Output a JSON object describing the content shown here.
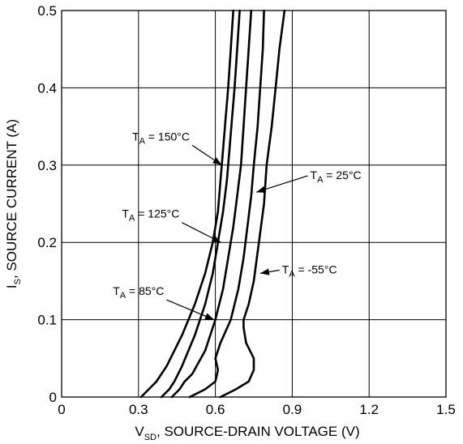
{
  "chart_data": {
    "type": "line",
    "xlabel": {
      "main": "V",
      "sub": "SD",
      "rest": ", SOURCE-DRAIN VOLTAGE (V)"
    },
    "ylabel": {
      "main": "I",
      "sub": "S",
      "rest": ", SOURCE CURRENT (A)"
    },
    "xlim": [
      0,
      1.5
    ],
    "ylim": [
      0,
      0.5
    ],
    "xticks": [
      0,
      0.3,
      0.6,
      0.9,
      1.2,
      1.5
    ],
    "xtick_labels": [
      "0",
      "0.3",
      "0.6",
      "0.9",
      "1.2",
      "1.5"
    ],
    "yticks": [
      0,
      0.1,
      0.2,
      0.3,
      0.4,
      0.5
    ],
    "ytick_labels": [
      "0",
      "0.1",
      "0.2",
      "0.3",
      "0.4",
      "0.5"
    ],
    "grid": true,
    "series": [
      {
        "name": "150",
        "label": {
          "pre": "T",
          "sub": "A",
          "post": " = 150°C"
        },
        "points": [
          [
            0.31,
            0
          ],
          [
            0.34,
            0.01
          ],
          [
            0.37,
            0.02
          ],
          [
            0.41,
            0.04
          ],
          [
            0.47,
            0.08
          ],
          [
            0.52,
            0.12
          ],
          [
            0.56,
            0.16
          ],
          [
            0.59,
            0.2
          ],
          [
            0.61,
            0.24
          ],
          [
            0.62,
            0.28
          ],
          [
            0.63,
            0.32
          ],
          [
            0.64,
            0.36
          ],
          [
            0.65,
            0.4
          ],
          [
            0.66,
            0.45
          ],
          [
            0.67,
            0.5
          ]
        ]
      },
      {
        "name": "125",
        "label": {
          "pre": "T",
          "sub": "A",
          "post": " = 125°C"
        },
        "points": [
          [
            0.39,
            0
          ],
          [
            0.42,
            0.01
          ],
          [
            0.44,
            0.02
          ],
          [
            0.47,
            0.04
          ],
          [
            0.52,
            0.08
          ],
          [
            0.56,
            0.12
          ],
          [
            0.59,
            0.16
          ],
          [
            0.61,
            0.2
          ],
          [
            0.63,
            0.24
          ],
          [
            0.645,
            0.28
          ],
          [
            0.655,
            0.32
          ],
          [
            0.665,
            0.36
          ],
          [
            0.675,
            0.4
          ],
          [
            0.685,
            0.45
          ],
          [
            0.695,
            0.5
          ]
        ]
      },
      {
        "name": "85",
        "label": {
          "pre": "T",
          "sub": "A",
          "post": " = 85°C"
        },
        "points": [
          [
            0.43,
            0
          ],
          [
            0.46,
            0.01
          ],
          [
            0.48,
            0.02
          ],
          [
            0.51,
            0.03
          ],
          [
            0.56,
            0.06
          ],
          [
            0.6,
            0.1
          ],
          [
            0.63,
            0.14
          ],
          [
            0.65,
            0.18
          ],
          [
            0.67,
            0.22
          ],
          [
            0.685,
            0.26
          ],
          [
            0.7,
            0.3
          ],
          [
            0.71,
            0.35
          ],
          [
            0.72,
            0.4
          ],
          [
            0.73,
            0.45
          ],
          [
            0.74,
            0.5
          ]
        ]
      },
      {
        "name": "25",
        "label": {
          "pre": "T",
          "sub": "A",
          "post": " = 25°C"
        },
        "points": [
          [
            0.5,
            0
          ],
          [
            0.56,
            0.01
          ],
          [
            0.6,
            0.02
          ],
          [
            0.61,
            0.035
          ],
          [
            0.6,
            0.05
          ],
          [
            0.62,
            0.07
          ],
          [
            0.66,
            0.1
          ],
          [
            0.69,
            0.14
          ],
          [
            0.71,
            0.18
          ],
          [
            0.725,
            0.22
          ],
          [
            0.74,
            0.26
          ],
          [
            0.75,
            0.3
          ],
          [
            0.765,
            0.35
          ],
          [
            0.775,
            0.4
          ],
          [
            0.785,
            0.45
          ],
          [
            0.79,
            0.5
          ]
        ]
      },
      {
        "name": "-55",
        "label": {
          "pre": "T",
          "sub": "A",
          "post": " = -55°C"
        },
        "points": [
          [
            0.62,
            0
          ],
          [
            0.68,
            0.01
          ],
          [
            0.73,
            0.02
          ],
          [
            0.75,
            0.035
          ],
          [
            0.75,
            0.05
          ],
          [
            0.72,
            0.07
          ],
          [
            0.71,
            0.09
          ],
          [
            0.71,
            0.1
          ],
          [
            0.73,
            0.12
          ],
          [
            0.75,
            0.15
          ],
          [
            0.77,
            0.2
          ],
          [
            0.79,
            0.25
          ],
          [
            0.8,
            0.3
          ],
          [
            0.82,
            0.35
          ],
          [
            0.835,
            0.4
          ],
          [
            0.85,
            0.45
          ],
          [
            0.87,
            0.5
          ]
        ]
      }
    ],
    "annotations": [
      {
        "series": "150",
        "text_at": [
          0.5,
          0.332
        ],
        "arrow_to": [
          0.625,
          0.3
        ],
        "anchor": "end"
      },
      {
        "series": "125",
        "text_at": [
          0.46,
          0.232
        ],
        "arrow_to": [
          0.622,
          0.2
        ],
        "anchor": "end"
      },
      {
        "series": "85",
        "text_at": [
          0.4,
          0.132
        ],
        "arrow_to": [
          0.595,
          0.1
        ],
        "anchor": "end"
      },
      {
        "series": "25",
        "text_at": [
          0.97,
          0.282
        ],
        "arrow_to": [
          0.76,
          0.265
        ],
        "anchor": "start"
      },
      {
        "series": "-55",
        "text_at": [
          0.86,
          0.16
        ],
        "arrow_to": [
          0.775,
          0.16
        ],
        "anchor": "start"
      }
    ]
  }
}
